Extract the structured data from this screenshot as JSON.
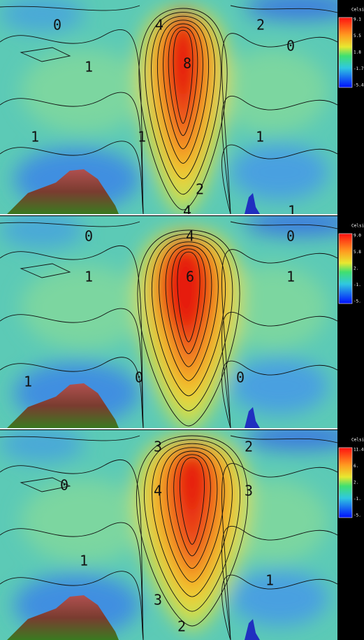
{
  "panels": [
    {
      "colorbar": {
        "title": "Celsi",
        "ticks": [
          "9.1",
          "5.5",
          "1.8",
          "-1.7",
          "-5.4"
        ]
      },
      "contour_labels": [
        "0",
        "4",
        "2",
        "1",
        "8",
        "0",
        "1",
        "1",
        "1",
        "2",
        "4",
        "1"
      ]
    },
    {
      "colorbar": {
        "title": "Celsi",
        "ticks": [
          "9.0",
          "5.8",
          "2.",
          "-1.",
          "-5."
        ]
      },
      "contour_labels": [
        "0",
        "4",
        "0",
        "1",
        "6",
        "1",
        "0",
        "0",
        "1"
      ]
    },
    {
      "colorbar": {
        "title": "Celsi",
        "ticks": [
          "11.4",
          "6.",
          "2.",
          "-1.",
          "-5."
        ]
      },
      "contour_labels": [
        "3",
        "2",
        "0",
        "4",
        "3",
        "1",
        "3",
        "1",
        "2"
      ]
    }
  ]
}
